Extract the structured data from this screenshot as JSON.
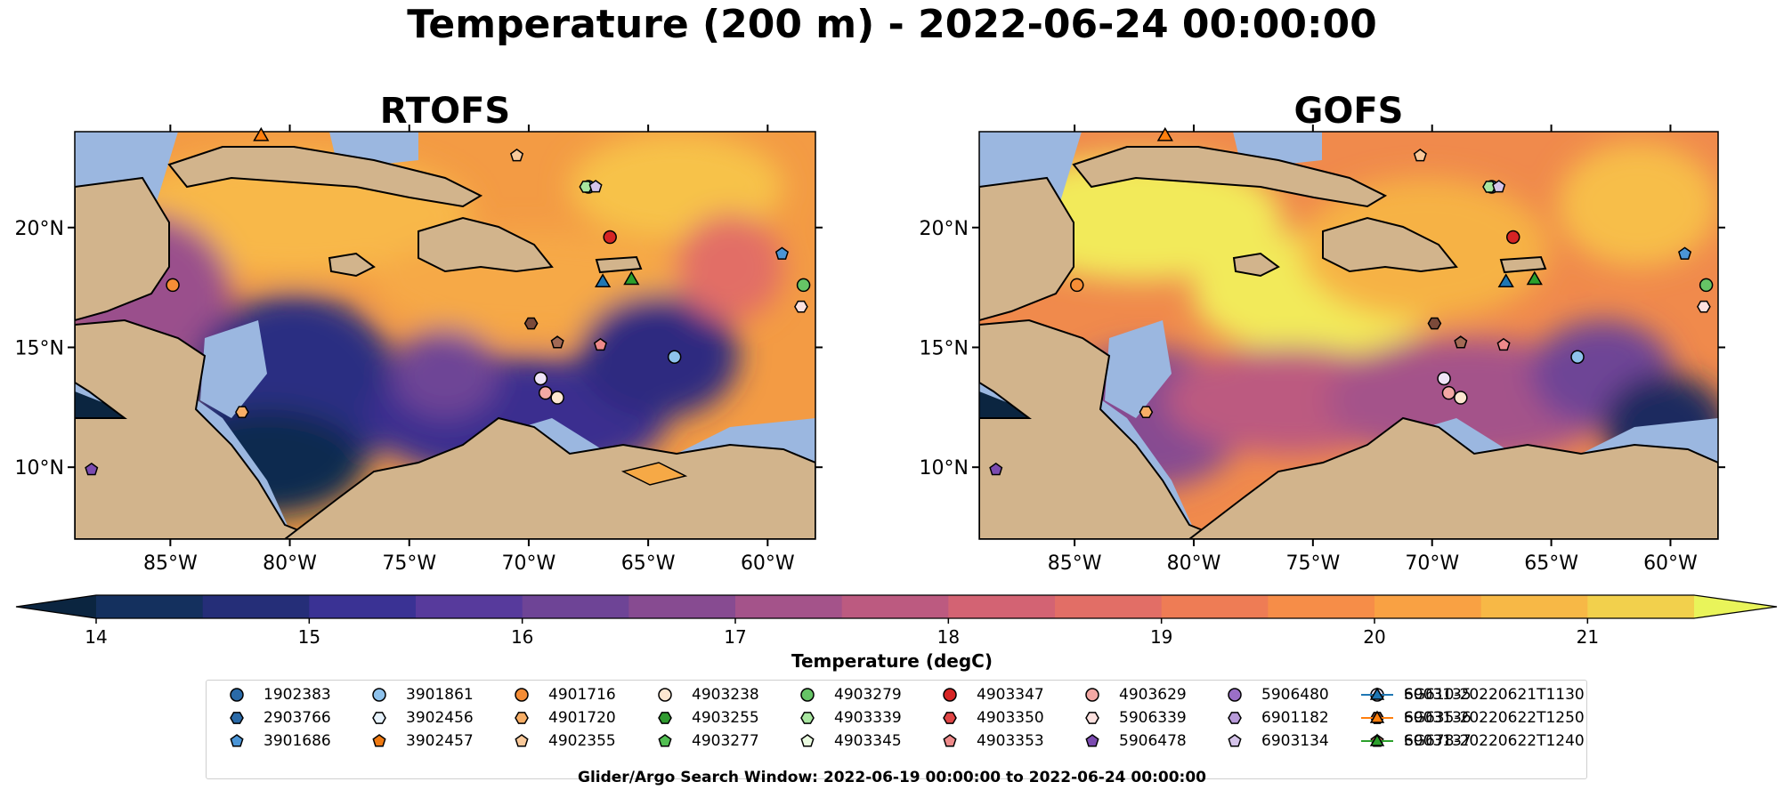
{
  "title": "Temperature (200 m) - 2022-06-24 00:00:00",
  "panels": [
    "RTOFS",
    "GOFS"
  ],
  "colorbar": {
    "label": "Temperature (degC)",
    "ticks": [
      "14",
      "15",
      "16",
      "17",
      "18",
      "19",
      "20",
      "21"
    ],
    "range": [
      14,
      21.5
    ],
    "colors": [
      "#0b2540",
      "#14305e",
      "#252e78",
      "#3a3294",
      "#573a9c",
      "#6e4496",
      "#874b91",
      "#a4538a",
      "#bc5a80",
      "#d36373",
      "#e26e66",
      "#ee7c55",
      "#f68d48",
      "#f9a143",
      "#f7b846",
      "#f2d04c",
      "#e9f45a"
    ]
  },
  "lat_ticks": [
    "20°N",
    "15°N",
    "10°N"
  ],
  "lon_ticks": [
    "85°W",
    "80°W",
    "75°W",
    "70°W",
    "65°W",
    "60°W"
  ],
  "colors": {
    "land": "#d2b48c",
    "shelf": "#9bb7e0",
    "ocean_warm": "#f39b44",
    "ocean_cool": "#3a2f8f",
    "ocean_cold": "#0b2540"
  },
  "legend": [
    {
      "label": "1902383",
      "marker": "circle",
      "color": "#2a6aa8"
    },
    {
      "label": "2903766",
      "marker": "hexagon",
      "color": "#2a6aa8"
    },
    {
      "label": "3901686",
      "marker": "pentagon",
      "color": "#4b95d6"
    },
    {
      "label": "3901861",
      "marker": "circle",
      "color": "#8ec2ec"
    },
    {
      "label": "3902456",
      "marker": "hexagon",
      "color": "#e6f2fc"
    },
    {
      "label": "3902457",
      "marker": "pentagon",
      "color": "#ef7a12"
    },
    {
      "label": "4901716",
      "marker": "circle",
      "color": "#f58d36"
    },
    {
      "label": "4901720",
      "marker": "hexagon",
      "color": "#f7ae66"
    },
    {
      "label": "4902355",
      "marker": "pentagon",
      "color": "#f9c99a"
    },
    {
      "label": "4903238",
      "marker": "circle",
      "color": "#fde7d0"
    },
    {
      "label": "4903255",
      "marker": "hexagon",
      "color": "#2f9a2f"
    },
    {
      "label": "4903277",
      "marker": "pentagon",
      "color": "#52bf52"
    },
    {
      "label": "4903279",
      "marker": "circle",
      "color": "#66c466"
    },
    {
      "label": "4903339",
      "marker": "hexagon",
      "color": "#a8e6a0"
    },
    {
      "label": "4903345",
      "marker": "pentagon",
      "color": "#eafbe0"
    },
    {
      "label": "4903347",
      "marker": "circle",
      "color": "#d62424"
    },
    {
      "label": "4903350",
      "marker": "hexagon",
      "color": "#e04646"
    },
    {
      "label": "4903353",
      "marker": "pentagon",
      "color": "#ee8a8a"
    },
    {
      "label": "4903629",
      "marker": "circle",
      "color": "#f3a8a4"
    },
    {
      "label": "5906339",
      "marker": "hexagon",
      "color": "#fde1df"
    },
    {
      "label": "5906478",
      "marker": "pentagon",
      "color": "#7b4bb0"
    },
    {
      "label": "5906480",
      "marker": "circle",
      "color": "#9b6fc7"
    },
    {
      "label": "6901182",
      "marker": "hexagon",
      "color": "#b79ad8"
    },
    {
      "label": "6903134",
      "marker": "pentagon",
      "color": "#d5c4ea"
    },
    {
      "label": "6903135",
      "marker": "circle",
      "color": "#efe4f7"
    },
    {
      "label": "6903136",
      "marker": "hexagon",
      "color": "#7b4a3a"
    },
    {
      "label": "6903137",
      "marker": "pentagon",
      "color": "#a36a55"
    },
    {
      "label": "SG610-20220621T1130",
      "marker": "triangle-line",
      "color": "#1f77b4"
    },
    {
      "label": "SG635-20220622T1250",
      "marker": "triangle-line",
      "color": "#ff7f0e"
    },
    {
      "label": "SG678-20220622T1240",
      "marker": "triangle-line",
      "color": "#2ca02c"
    }
  ],
  "chart_data": {
    "type": "heatmap",
    "title": "Temperature (200 m) - 2022-06-24 00:00:00",
    "xlabel": "",
    "ylabel": "",
    "xlim": [
      -89,
      -58
    ],
    "ylim": [
      7,
      24
    ],
    "clim": [
      14,
      21.5
    ],
    "colorbar_label": "Temperature (degC)",
    "panels": [
      "RTOFS",
      "GOFS"
    ],
    "floats": [
      {
        "id": "1902383",
        "lon": -67.5,
        "lat": 21.7
      },
      {
        "id": "3901861",
        "lon": -63.9,
        "lat": 14.6
      },
      {
        "id": "4901716",
        "lon": -84.9,
        "lat": 17.6
      },
      {
        "id": "4901720",
        "lon": -82.0,
        "lat": 12.3
      },
      {
        "id": "4902355",
        "lon": -70.5,
        "lat": 23.0
      },
      {
        "id": "4903238",
        "lon": -68.8,
        "lat": 12.9
      },
      {
        "id": "4903339",
        "lon": -67.6,
        "lat": 21.7
      },
      {
        "id": "4903347",
        "lon": -66.6,
        "lat": 19.6
      },
      {
        "id": "4903353",
        "lon": -67.0,
        "lat": 15.1
      },
      {
        "id": "4903629",
        "lon": -69.3,
        "lat": 13.1
      },
      {
        "id": "5906339",
        "lon": -58.6,
        "lat": 16.7
      },
      {
        "id": "5906478",
        "lon": -88.3,
        "lat": 9.9
      },
      {
        "id": "6903134",
        "lon": -67.2,
        "lat": 21.7
      },
      {
        "id": "6903135",
        "lon": -69.5,
        "lat": 13.7
      },
      {
        "id": "6903136",
        "lon": -69.9,
        "lat": 16.0
      },
      {
        "id": "6903137",
        "lon": -68.8,
        "lat": 15.2
      },
      {
        "id": "3901686",
        "lon": -59.4,
        "lat": 18.9
      },
      {
        "id": "4903279",
        "lon": -58.5,
        "lat": 17.6
      }
    ],
    "gliders": [
      {
        "id": "SG610-20220621T1130",
        "lon": -66.9,
        "lat": 17.7
      },
      {
        "id": "SG678-20220622T1240",
        "lon": -65.7,
        "lat": 17.8
      },
      {
        "id": "SG635-20220622T1250",
        "lon": -81.2,
        "lat": 23.8
      }
    ]
  },
  "search_window": "Glider/Argo Search Window: 2022-06-19 00:00:00 to 2022-06-24 00:00:00"
}
